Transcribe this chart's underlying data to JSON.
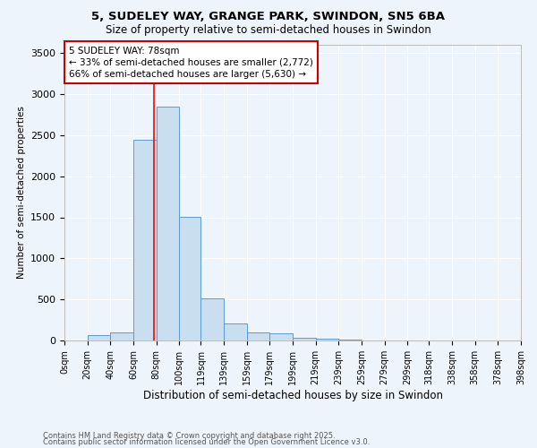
{
  "title1": "5, SUDELEY WAY, GRANGE PARK, SWINDON, SN5 6BA",
  "title2": "Size of property relative to semi-detached houses in Swindon",
  "xlabel": "Distribution of semi-detached houses by size in Swindon",
  "ylabel": "Number of semi-detached properties",
  "footnote1": "Contains HM Land Registry data © Crown copyright and database right 2025.",
  "footnote2": "Contains public sector information licensed under the Open Government Licence v3.0.",
  "annotation_line1": "5 SUDELEY WAY: 78sqm",
  "annotation_line2": "← 33% of semi-detached houses are smaller (2,772)",
  "annotation_line3": "66% of semi-detached houses are larger (5,630) →",
  "bar_left_edges": [
    0,
    20,
    40,
    60,
    80,
    100,
    119,
    139,
    159,
    179,
    199,
    219,
    239,
    259,
    279,
    299,
    318,
    338,
    358,
    378
  ],
  "bar_widths": [
    20,
    20,
    20,
    20,
    20,
    19,
    20,
    20,
    20,
    20,
    20,
    20,
    20,
    20,
    20,
    19,
    20,
    20,
    20,
    20
  ],
  "bar_heights": [
    2,
    70,
    100,
    2440,
    2850,
    1510,
    510,
    205,
    100,
    90,
    35,
    18,
    8,
    5,
    3,
    3,
    2,
    1,
    0,
    0
  ],
  "tick_labels": [
    "0sqm",
    "20sqm",
    "40sqm",
    "60sqm",
    "80sqm",
    "100sqm",
    "119sqm",
    "139sqm",
    "159sqm",
    "179sqm",
    "199sqm",
    "219sqm",
    "239sqm",
    "259sqm",
    "279sqm",
    "299sqm",
    "318sqm",
    "338sqm",
    "358sqm",
    "378sqm",
    "398sqm"
  ],
  "bar_color": "#c9dff0",
  "bar_edge_color": "#5b9bd5",
  "red_line_x": 78,
  "ylim": [
    0,
    3600
  ],
  "yticks": [
    0,
    500,
    1000,
    1500,
    2000,
    2500,
    3000,
    3500
  ],
  "xlim_max": 398,
  "background_color": "#eef4fb",
  "grid_color": "#ffffff",
  "annotation_box_color": "#ffffff",
  "annotation_box_edge": "#cc0000",
  "title1_fontsize": 9.5,
  "title2_fontsize": 8.5,
  "xlabel_fontsize": 8.5,
  "ylabel_fontsize": 7.5,
  "ytick_fontsize": 8,
  "xtick_fontsize": 7,
  "footnote_fontsize": 6,
  "annot_fontsize": 7.5
}
